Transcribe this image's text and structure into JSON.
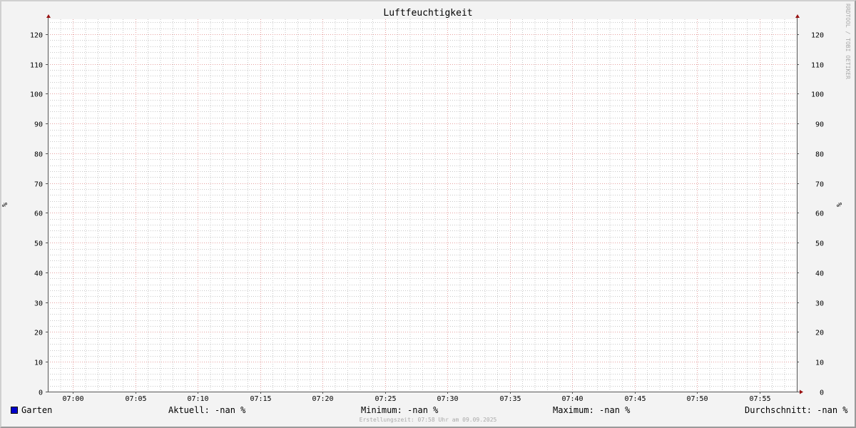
{
  "chart_data": {
    "type": "line",
    "title": "Luftfeuchtigkeit",
    "ylabel": "%",
    "ylabel_right": "%",
    "ylim": [
      0,
      125
    ],
    "yticks": [
      0,
      10,
      20,
      30,
      40,
      50,
      60,
      70,
      80,
      90,
      100,
      110,
      120
    ],
    "xlim": [
      "06:58",
      "07:58"
    ],
    "xticks": [
      "07:00",
      "07:05",
      "07:10",
      "07:15",
      "07:20",
      "07:25",
      "07:30",
      "07:35",
      "07:40",
      "07:45",
      "07:50",
      "07:55"
    ],
    "grid": true,
    "series": [
      {
        "name": "Garten",
        "color": "#0000cc",
        "values": []
      }
    ],
    "legend_placement": "bottom"
  },
  "legend": {
    "name": "Garten",
    "current": "Aktuell: -nan %",
    "minimum": "Minimum: -nan %",
    "maximum": "Maximum: -nan %",
    "average": "Durchschnitt: -nan %"
  },
  "watermark": "RRDTOOL / TOBI OETIKER",
  "footer": "Erstellungszeit: 07:58 Uhr am 09.09.2025",
  "colors": {
    "grid_major": "#e6a0a0",
    "grid_minor": "#c8c8c8",
    "axis": "#555555",
    "arrow": "#991111",
    "series": "#0000cc"
  }
}
